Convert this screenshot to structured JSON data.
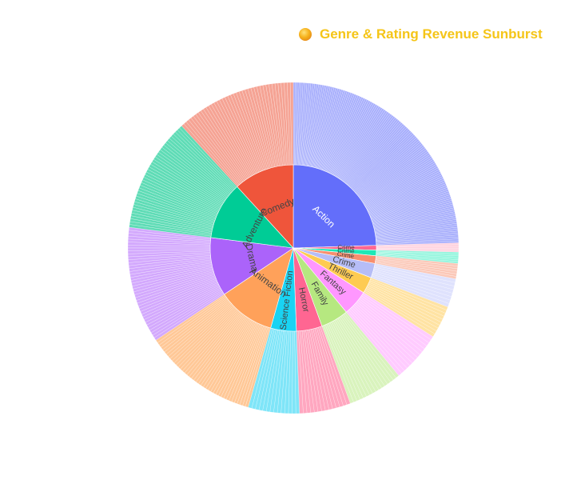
{
  "chart_data": {
    "type": "sunburst",
    "title": "Genre & Rating Revenue Sunburst",
    "title_icon": "sun-emoji-icon",
    "title_color": "#f5c518",
    "genres": [
      {
        "name": "Action",
        "value": 24.5,
        "color": "#636efa",
        "outer_color": "#a6adfc",
        "label_color": "#ffffff",
        "fine": 130
      },
      {
        "name": "Crime",
        "value": 0.9,
        "color": "#ff6692",
        "outer_color": "#ffd1de",
        "label_color": "#444444",
        "fine": 5
      },
      {
        "name": "Crime",
        "value": 1.1,
        "color": "#1de9b6",
        "outer_color": "#8ff5dc",
        "label_color": "#444444",
        "fine": 6
      },
      {
        "name": "Crime",
        "value": 1.5,
        "color": "#f78f6f",
        "outer_color": "#fbc8b8",
        "label_color": "#444444",
        "fine": 6
      },
      {
        "name": "Crime",
        "value": 2.8,
        "color": "#b6bdf7",
        "outer_color": "#dfe2fd",
        "label_color": "#444444",
        "fine": 8
      },
      {
        "name": "Thriller",
        "value": 3.2,
        "color": "#fecb52",
        "outer_color": "#ffe3a3",
        "label_color": "#444444",
        "fine": 10
      },
      {
        "name": "Fantasy",
        "value": 5.0,
        "color": "#ff97ff",
        "outer_color": "#ffcbff",
        "label_color": "#444444",
        "fine": 14
      },
      {
        "name": "Family",
        "value": 5.4,
        "color": "#b6e880",
        "outer_color": "#d9f3bd",
        "label_color": "#444444",
        "fine": 16
      },
      {
        "name": "Horror",
        "value": 5.0,
        "color": "#ff6692",
        "outer_color": "#ffa7c0",
        "label_color": "#444444",
        "fine": 14
      },
      {
        "name": "Science Fiction",
        "value": 5.0,
        "color": "#19d3f3",
        "outer_color": "#7fe5f8",
        "label_color": "#444444",
        "fine": 14
      },
      {
        "name": "Animation",
        "value": 11.2,
        "color": "#ffa15a",
        "outer_color": "#ffc897",
        "label_color": "#444444",
        "fine": 40
      },
      {
        "name": "Drama",
        "value": 11.4,
        "color": "#ab63fa",
        "outer_color": "#d3a9fd",
        "label_color": "#444444",
        "fine": 40
      },
      {
        "name": "Adventure",
        "value": 11.2,
        "color": "#00cc96",
        "outer_color": "#5fdcb6",
        "label_color": "#444444",
        "fine": 40
      },
      {
        "name": "Comedy",
        "value": 11.8,
        "color": "#ef553b",
        "outer_color": "#f5a394",
        "label_color": "#444444",
        "fine": 40
      }
    ]
  }
}
